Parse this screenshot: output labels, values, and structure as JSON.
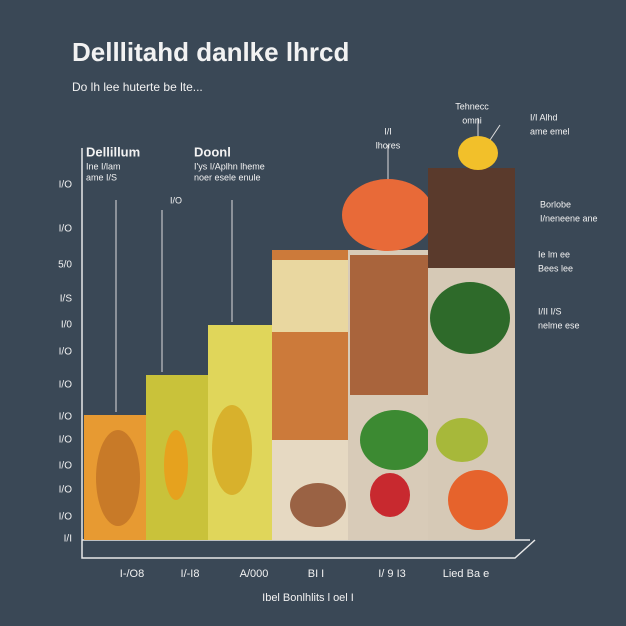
{
  "header": {
    "title": "Delllitahd danlke lhrcd",
    "subtitle": "Do lh lee huterte be lte..."
  },
  "y_axis_labels": [
    "I/O",
    "I/O",
    "5/0",
    "I/S",
    "I/0",
    "I/O",
    "I/O",
    "I/O",
    "I/O",
    "I/O",
    "I/O",
    "I/O",
    "I/I"
  ],
  "x_axis_labels": [
    "I-/O8",
    "I/-I8",
    "A/000",
    "BI I",
    "I/ 9 I3",
    "Lied Ba e"
  ],
  "x_axis_title": "Ibel Bonlhlits l oel I",
  "annotations": [
    {
      "title": "Dellillum",
      "lines": [
        "Ine I/lam",
        "ame I/S"
      ]
    },
    {
      "title": "Doonl",
      "lines": [
        "I'ys I/Aplhn lheme",
        "noer esele enule"
      ]
    },
    {
      "title": "I/O",
      "lines": []
    },
    {
      "title": "I/I",
      "lines": [
        "lhores"
      ]
    },
    {
      "title": "Tehnecc",
      "lines": [
        "omni"
      ]
    },
    {
      "title": "I/I Alhd",
      "lines": [
        "ame emel"
      ]
    },
    {
      "title": "Borlobe",
      "lines": [
        "I/neneene ane"
      ]
    },
    {
      "title": "Ie lm ee",
      "lines": [
        "Bees lee"
      ]
    },
    {
      "title": "I/II I/S",
      "lines": [
        "nelme ese"
      ]
    }
  ]
}
